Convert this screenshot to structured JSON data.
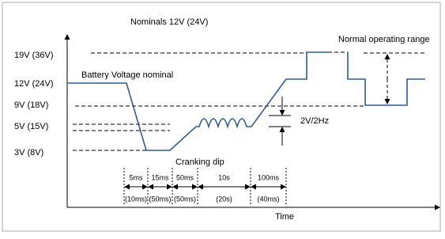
{
  "title": "Nominals   12V (24V)",
  "y_labels": [
    "19V   (36V)",
    "12V   (24V)",
    "9V   (18V)",
    "5V   (15V)",
    "3V   (8V)"
  ],
  "annotations": {
    "battery": "Battery Voltage nominal",
    "cranking": "Cranking dip",
    "ripple": "2V/2Hz",
    "range": "Normal operating range",
    "x_axis": "Time"
  },
  "segments": [
    {
      "duration": "5ms",
      "alt": "(10ms)"
    },
    {
      "duration": "15ms",
      "alt": "(50ms)"
    },
    {
      "duration": "50ms",
      "alt": "(50ms)"
    },
    {
      "duration": "10s",
      "alt": "(20s)"
    },
    {
      "duration": "100ms",
      "alt": "(40ms)"
    }
  ]
}
